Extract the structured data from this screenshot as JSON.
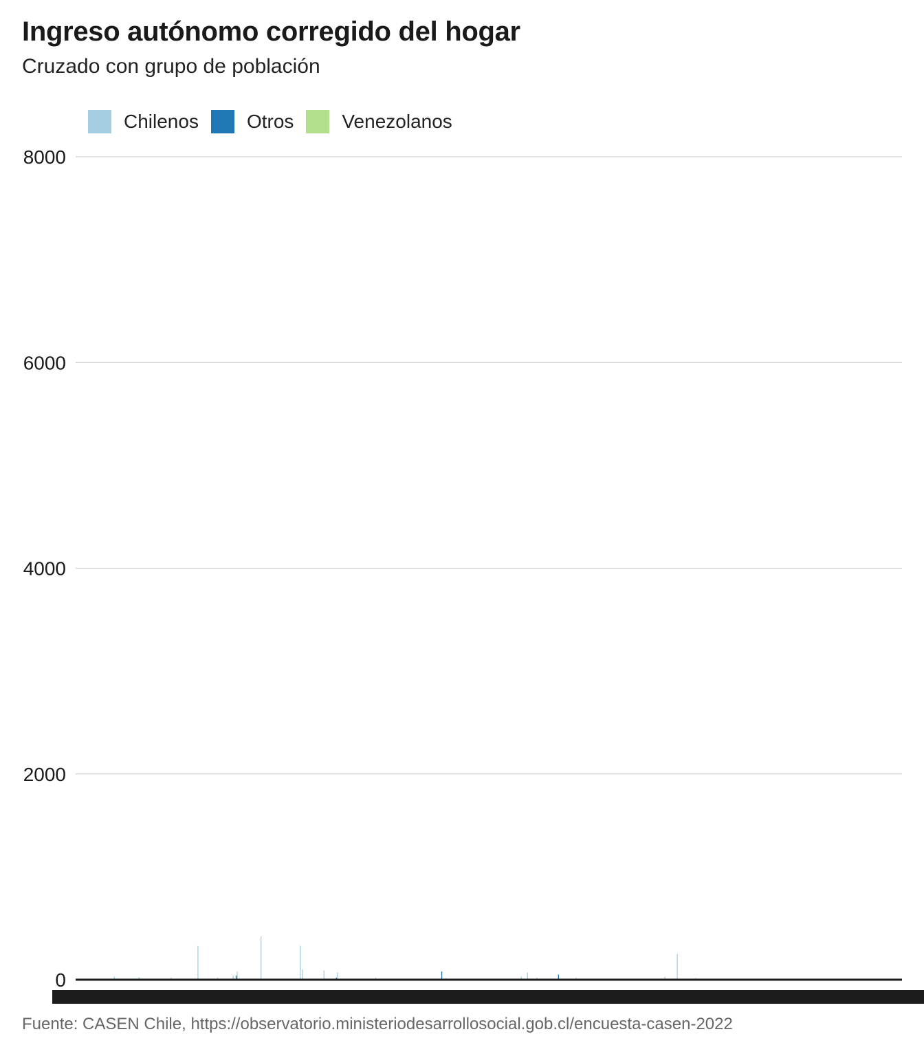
{
  "title": "Ingreso autónomo corregido del hogar",
  "subtitle": "Cruzado con grupo de población",
  "legend": [
    {
      "label": "Chilenos",
      "color": "#a6cee3"
    },
    {
      "label": "Otros",
      "color": "#1f78b4"
    },
    {
      "label": "Venezolanos",
      "color": "#b2df8a"
    }
  ],
  "source": "Fuente: CASEN Chile, https://observatorio.ministeriodesarrollosocial.gob.cl/encuesta-casen-2022",
  "chart_data": {
    "type": "bar",
    "title": "Ingreso autónomo corregido del hogar",
    "subtitle": "Cruzado con grupo de población",
    "xlabel": "",
    "ylabel": "",
    "ylim": [
      0,
      8000
    ],
    "yticks": [
      0,
      2000,
      4000,
      6000,
      8000
    ],
    "grid": true,
    "legend_position": "top-left",
    "bar_count": 800,
    "series": [
      {
        "name": "Chilenos",
        "color": "#a6cee3",
        "bars": [
          {
            "index": 37,
            "value": 30
          },
          {
            "index": 61,
            "value": 25
          },
          {
            "index": 92,
            "value": 20
          },
          {
            "index": 118,
            "value": 330
          },
          {
            "index": 137,
            "value": 20
          },
          {
            "index": 152,
            "value": 40
          },
          {
            "index": 156,
            "value": 80
          },
          {
            "index": 179,
            "value": 420
          },
          {
            "index": 217,
            "value": 330
          },
          {
            "index": 219,
            "value": 100
          },
          {
            "index": 240,
            "value": 90
          },
          {
            "index": 253,
            "value": 70
          },
          {
            "index": 290,
            "value": 20
          },
          {
            "index": 358,
            "value": 15
          },
          {
            "index": 431,
            "value": 30
          },
          {
            "index": 437,
            "value": 70
          },
          {
            "index": 446,
            "value": 20
          },
          {
            "index": 484,
            "value": 20
          },
          {
            "index": 570,
            "value": 30
          },
          {
            "index": 582,
            "value": 250
          },
          {
            "index": 600,
            "value": 15
          }
        ]
      },
      {
        "name": "Otros",
        "color": "#1f78b4",
        "bars": [
          {
            "index": 155,
            "value": 40
          },
          {
            "index": 252,
            "value": 20
          },
          {
            "index": 354,
            "value": 80
          },
          {
            "index": 467,
            "value": 50
          }
        ]
      },
      {
        "name": "Venezolanos",
        "color": "#b2df8a",
        "bars": []
      }
    ]
  }
}
